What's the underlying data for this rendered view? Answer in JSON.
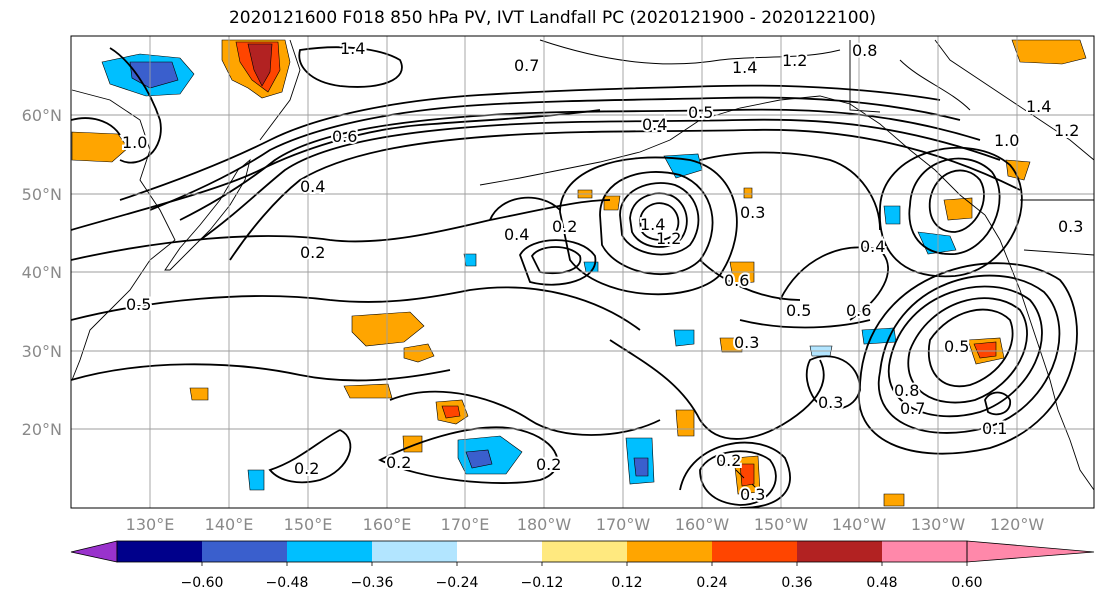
{
  "title": "2020121600 F018 850 hPa PV, IVT Landfall PC (2020121900 - 2020122100)",
  "lat_labels": [
    "60°N",
    "50°N",
    "40°N",
    "30°N",
    "20°N"
  ],
  "lon_labels": [
    "130°E",
    "140°E",
    "150°E",
    "160°E",
    "170°E",
    "180°W",
    "170°W",
    "160°W",
    "150°W",
    "140°W",
    "130°W",
    "120°W"
  ],
  "colorbar": {
    "ticks": [
      "−0.60",
      "−0.48",
      "−0.36",
      "−0.24",
      "−0.12",
      "0.12",
      "0.24",
      "0.36",
      "0.48",
      "0.60"
    ],
    "colors": [
      "#9932cc",
      "#00008b",
      "#3a5fcd",
      "#00bfff",
      "#b2e5ff",
      "#ffffff",
      "#ffe97f",
      "#ffa500",
      "#ff4500",
      "#b22222",
      "#ff88aa"
    ]
  },
  "contour_labels": [
    "1.4",
    "1.4",
    "1.2",
    "0.8",
    "0.7",
    "0.4",
    "0.5",
    "1.0",
    "0.6",
    "1.4",
    "1.2",
    "1.0",
    "0.4",
    "0.2",
    "0.4",
    "0.2",
    "1.4",
    "1.2",
    "0.3",
    "0.4",
    "0.6",
    "0.5",
    "0.6",
    "0.3",
    "0.3",
    "0.2",
    "0.2",
    "0.2",
    "0.2",
    "0.3",
    "0.5",
    "0.8",
    "0.7",
    "0.3",
    "0.1",
    "0.5"
  ]
}
